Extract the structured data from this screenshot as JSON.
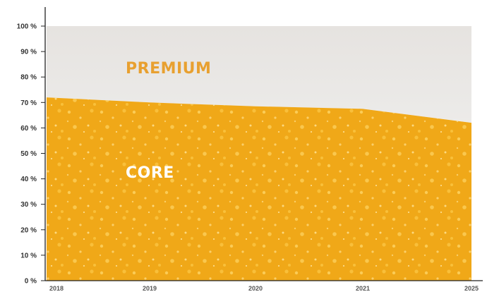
{
  "chart_data": {
    "type": "area",
    "stacked": true,
    "percent": true,
    "x": [
      "2018",
      "2019",
      "2020",
      "2021",
      "2025"
    ],
    "series": [
      {
        "name": "CORE",
        "values": [
          72,
          70,
          68.5,
          67.5,
          62
        ]
      },
      {
        "name": "PREMIUM",
        "values": [
          28,
          30,
          31.5,
          32.5,
          38
        ]
      }
    ],
    "y_ticks": [
      "0 %",
      "10 %",
      "20 %",
      "30 %",
      "40 %",
      "50 %",
      "60 %",
      "70 %",
      "80 %",
      "90 %",
      "100 %"
    ],
    "ylim": [
      0,
      100
    ],
    "grid": false,
    "legend": "none (labels inside areas)",
    "colors": {
      "core": "#f0a818",
      "core_bubble": "#ffd55a",
      "premium": "#e9e6e3",
      "premium_label": "#e8a030",
      "core_label": "#ffffff",
      "axis": "#222222"
    }
  }
}
